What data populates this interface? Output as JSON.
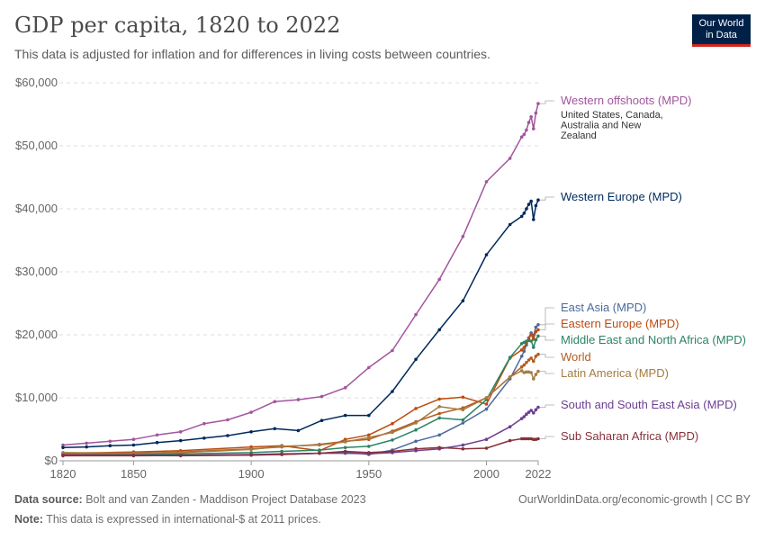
{
  "header": {
    "title": "GDP per capita, 1820 to 2022",
    "subtitle": "This data is adjusted for inflation and for differences in living costs between countries."
  },
  "logo": {
    "line1": "Our World",
    "line2": "in Data"
  },
  "footer": {
    "source_label": "Data source:",
    "source_text": "Bolt and van Zanden - Maddison Project Database 2023",
    "note_label": "Note:",
    "note_text": "This data is expressed in international-$ at 2011 prices.",
    "url": "OurWorldinData.org/economic-growth",
    "license": "CC BY"
  },
  "chart_data": {
    "type": "line",
    "title": "GDP per capita, 1820 to 2022",
    "xlim": [
      1820,
      2022
    ],
    "ylim": [
      0,
      60000
    ],
    "x_ticks": [
      1820,
      1850,
      1900,
      1950,
      2000,
      2022
    ],
    "y_ticks": [
      0,
      10000,
      20000,
      30000,
      40000,
      50000,
      60000
    ],
    "y_tick_labels": [
      "$0",
      "$10,000",
      "$20,000",
      "$30,000",
      "$40,000",
      "$50,000",
      "$60,000"
    ],
    "grid": "horizontal dashed",
    "legend": "right, inline labels",
    "series": [
      {
        "name": "Western offshoots (MPD)",
        "note": "United States, Canada, Australia and New Zealand",
        "color": "#a2559c",
        "x": [
          1820,
          1830,
          1840,
          1850,
          1860,
          1870,
          1880,
          1890,
          1900,
          1910,
          1920,
          1930,
          1940,
          1950,
          1960,
          1970,
          1980,
          1990,
          2000,
          2010,
          2015,
          2016,
          2017,
          2018,
          2019,
          2020,
          2021,
          2022
        ],
        "y": [
          2500,
          2800,
          3100,
          3400,
          4100,
          4600,
          5900,
          6500,
          7700,
          9400,
          9700,
          10200,
          11600,
          14800,
          17500,
          23200,
          28800,
          35600,
          44300,
          48000,
          51400,
          51800,
          52500,
          53700,
          54600,
          52700,
          55200,
          56700
        ]
      },
      {
        "name": "Western Europe (MPD)",
        "color": "#00295b",
        "x": [
          1820,
          1830,
          1840,
          1850,
          1860,
          1870,
          1880,
          1890,
          1900,
          1910,
          1920,
          1930,
          1940,
          1950,
          1960,
          1970,
          1980,
          1990,
          2000,
          2010,
          2015,
          2016,
          2017,
          2018,
          2019,
          2020,
          2021,
          2022
        ],
        "y": [
          2100,
          2200,
          2400,
          2500,
          2900,
          3200,
          3600,
          4000,
          4600,
          5100,
          4800,
          6400,
          7200,
          7200,
          11000,
          16100,
          20800,
          25400,
          32700,
          37500,
          38800,
          39300,
          40000,
          40700,
          41200,
          38300,
          40500,
          41400
        ]
      },
      {
        "name": "East Asia (MPD)",
        "color": "#4c6a9c",
        "x": [
          1820,
          1850,
          1870,
          1900,
          1913,
          1929,
          1940,
          1950,
          1960,
          1970,
          1980,
          1990,
          2000,
          2010,
          2015,
          2016,
          2017,
          2018,
          2019,
          2020,
          2021,
          2022
        ],
        "y": [
          900,
          850,
          800,
          950,
          1000,
          1200,
          1400,
          1000,
          1700,
          3100,
          4100,
          6000,
          8200,
          13000,
          16600,
          17400,
          18400,
          19500,
          20300,
          19900,
          21200,
          21600
        ]
      },
      {
        "name": "Eastern Europe (MPD)",
        "color": "#bc4b0f",
        "x": [
          1820,
          1850,
          1870,
          1900,
          1913,
          1929,
          1940,
          1950,
          1960,
          1970,
          1980,
          1990,
          2000,
          2010,
          2015,
          2016,
          2017,
          2018,
          2019,
          2020,
          2021,
          2022
        ],
        "y": [
          1200,
          1400,
          1600,
          2200,
          2400,
          1600,
          3400,
          4100,
          5900,
          8300,
          9800,
          10100,
          9000,
          16300,
          17600,
          18000,
          18700,
          19500,
          20000,
          19300,
          20500,
          20800
        ]
      },
      {
        "name": "Middle East and North Africa (MPD)",
        "color": "#2c8465",
        "x": [
          1820,
          1850,
          1870,
          1900,
          1913,
          1929,
          1940,
          1950,
          1960,
          1970,
          1980,
          1990,
          2000,
          2010,
          2015,
          2016,
          2017,
          2018,
          2019,
          2020,
          2021,
          2022
        ],
        "y": [
          1000,
          1050,
          1100,
          1300,
          1500,
          1700,
          2100,
          2300,
          3300,
          4900,
          6800,
          6500,
          9700,
          16400,
          18600,
          18800,
          19000,
          19100,
          19000,
          18000,
          19200,
          19800
        ]
      },
      {
        "name": "World",
        "color": "#b35c21",
        "x": [
          1820,
          1850,
          1870,
          1900,
          1913,
          1929,
          1940,
          1950,
          1960,
          1970,
          1980,
          1990,
          2000,
          2010,
          2015,
          2016,
          2017,
          2018,
          2019,
          2020,
          2021,
          2022
        ],
        "y": [
          1100,
          1200,
          1400,
          1900,
          2200,
          2600,
          3100,
          3400,
          4700,
          6200,
          7500,
          8400,
          10000,
          13300,
          14900,
          15200,
          15600,
          16000,
          16300,
          15800,
          16600,
          16900
        ]
      },
      {
        "name": "Latin America (MPD)",
        "color": "#a47c42",
        "x": [
          1820,
          1850,
          1870,
          1900,
          1913,
          1929,
          1940,
          1950,
          1960,
          1970,
          1980,
          1990,
          2000,
          2010,
          2015,
          2016,
          2017,
          2018,
          2019,
          2020,
          2021,
          2022
        ],
        "y": [
          1300,
          1200,
          1300,
          1800,
          2300,
          2500,
          3000,
          3700,
          4500,
          6000,
          8600,
          8100,
          10000,
          13300,
          14300,
          14000,
          14100,
          14100,
          14000,
          13000,
          13700,
          14200
        ]
      },
      {
        "name": "South and South East Asia (MPD)",
        "color": "#6d3e91",
        "x": [
          1820,
          1850,
          1870,
          1900,
          1913,
          1929,
          1940,
          1950,
          1960,
          1970,
          1980,
          1990,
          2000,
          2010,
          2015,
          2016,
          2017,
          2018,
          2019,
          2020,
          2021,
          2022
        ],
        "y": [
          900,
          900,
          900,
          1000,
          1100,
          1200,
          1200,
          1100,
          1300,
          1600,
          1900,
          2500,
          3400,
          5400,
          6700,
          7000,
          7400,
          7700,
          8000,
          7600,
          8100,
          8500
        ]
      },
      {
        "name": "Sub Saharan Africa (MPD)",
        "color": "#883039",
        "x": [
          1820,
          1850,
          1870,
          1900,
          1913,
          1929,
          1940,
          1950,
          1960,
          1970,
          1980,
          1990,
          2000,
          2010,
          2015,
          2016,
          2017,
          2018,
          2019,
          2020,
          2021,
          2022
        ],
        "y": [
          800,
          800,
          850,
          900,
          1000,
          1200,
          1500,
          1300,
          1500,
          1900,
          2100,
          1900,
          2000,
          3200,
          3500,
          3500,
          3500,
          3500,
          3500,
          3400,
          3400,
          3500
        ]
      }
    ]
  }
}
